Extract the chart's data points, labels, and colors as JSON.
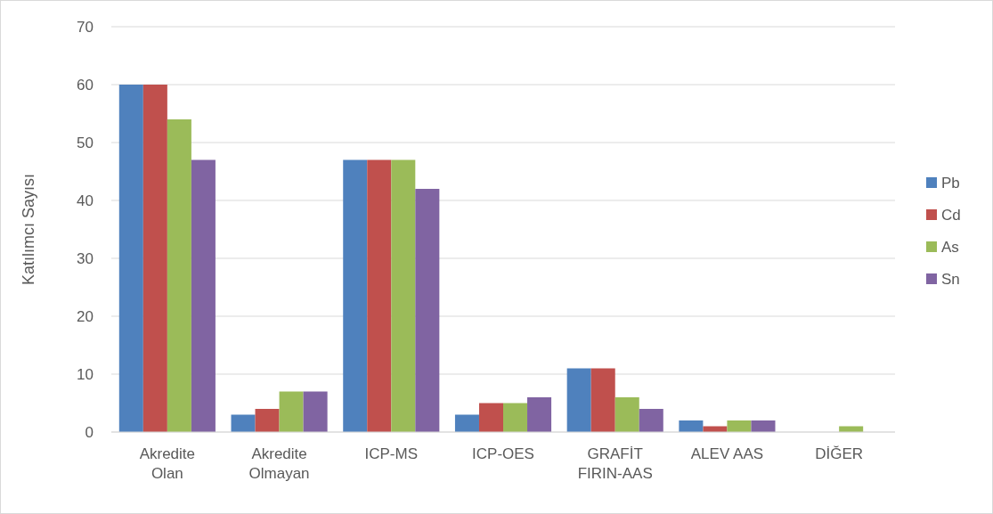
{
  "chart_data": {
    "type": "bar",
    "ylabel": "Katılımcı Sayısı",
    "categories": [
      "Akredite\nOlan",
      "Akredite\nOlmayan",
      "ICP-MS",
      "ICP-OES",
      "GRAFİT\nFIRIN-AAS",
      "ALEV AAS",
      "DİĞER"
    ],
    "series": [
      {
        "name": "Pb",
        "color": "#4f81bd",
        "values": [
          60,
          3,
          47,
          3,
          11,
          2,
          0
        ]
      },
      {
        "name": "Cd",
        "color": "#c0504d",
        "values": [
          60,
          4,
          47,
          5,
          11,
          1,
          0
        ]
      },
      {
        "name": "As",
        "color": "#9bbb59",
        "values": [
          54,
          7,
          47,
          5,
          6,
          2,
          1
        ]
      },
      {
        "name": "Sn",
        "color": "#8064a2",
        "values": [
          47,
          7,
          42,
          6,
          4,
          2,
          0
        ]
      }
    ],
    "ylim": [
      0,
      70
    ],
    "yticks": [
      0,
      10,
      20,
      30,
      40,
      50,
      60,
      70
    ],
    "grid": "y",
    "legend": "right"
  }
}
